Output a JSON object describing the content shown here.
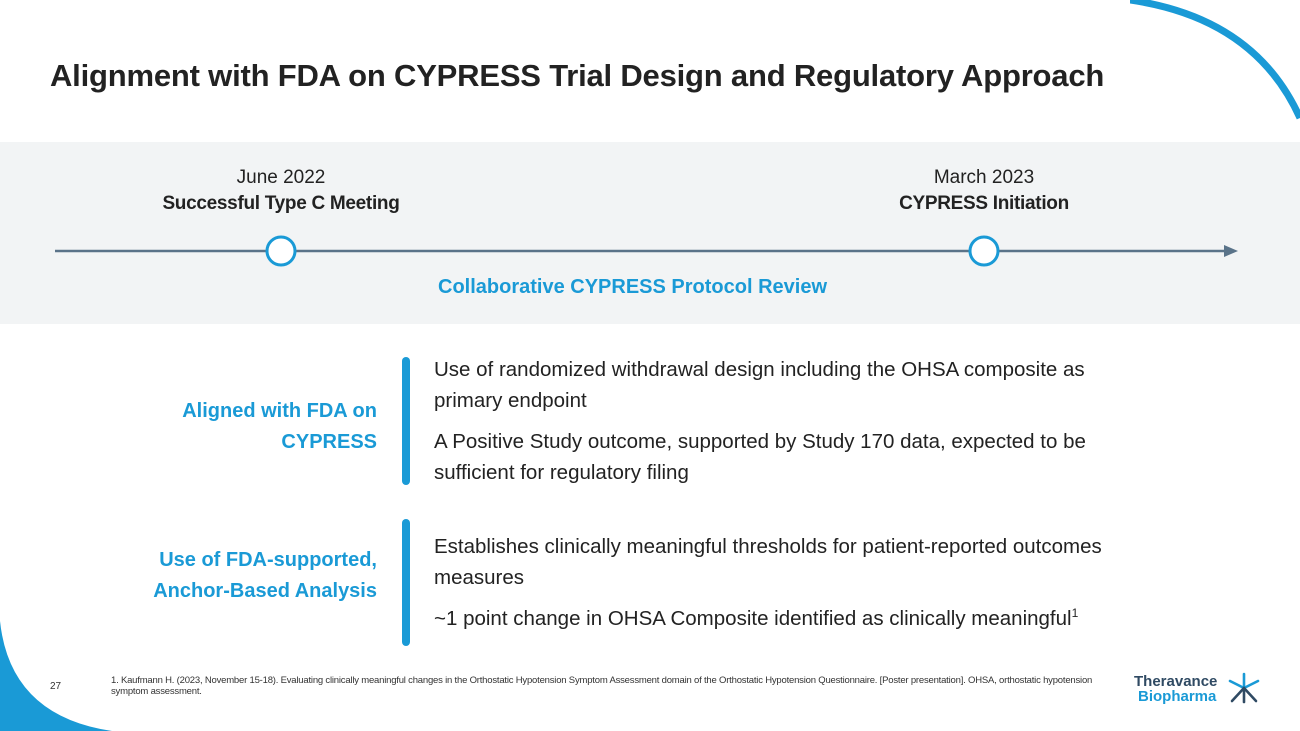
{
  "slide": {
    "title": "Alignment with FDA on CYPRESS Trial Design and Regulatory Approach",
    "page_number": "27"
  },
  "timeline": {
    "milestones": [
      {
        "date": "June 2022",
        "event": "Successful Type C Meeting"
      },
      {
        "date": "March 2023",
        "event": "CYPRESS Initiation"
      }
    ],
    "span_label": "Collaborative CYPRESS Protocol Review"
  },
  "sections": [
    {
      "label_line1": "Aligned with FDA on",
      "label_line2": "CYPRESS",
      "bullets": [
        "Use of randomized withdrawal design including the OHSA composite as primary endpoint",
        "A Positive Study outcome, supported by Study 170 data, expected to be sufficient for regulatory filing"
      ]
    },
    {
      "label_line1": "Use of FDA-supported,",
      "label_line2": "Anchor-Based Analysis",
      "bullets": [
        "Establishes clinically meaningful thresholds for patient-reported outcomes measures",
        "~1 point change in OHSA Composite identified as clinically meaningful"
      ],
      "footnote_marker": "1"
    }
  ],
  "footnote": "1. Kaufmann H. (2023, November 15-18). Evaluating clinically meaningful changes in the Orthostatic Hypotension Symptom Assessment domain of the Orthostatic Hypotension Questionnaire. [Poster presentation]. OHSA, orthostatic hypotension symptom assessment.",
  "logo": {
    "line1": "Theravance",
    "line2": "Biopharma",
    "icon": "starburst-logo-icon"
  },
  "colors": {
    "accent": "#1a9ad6",
    "band": "#f2f4f5",
    "line": "#5a7389",
    "text": "#222222"
  }
}
